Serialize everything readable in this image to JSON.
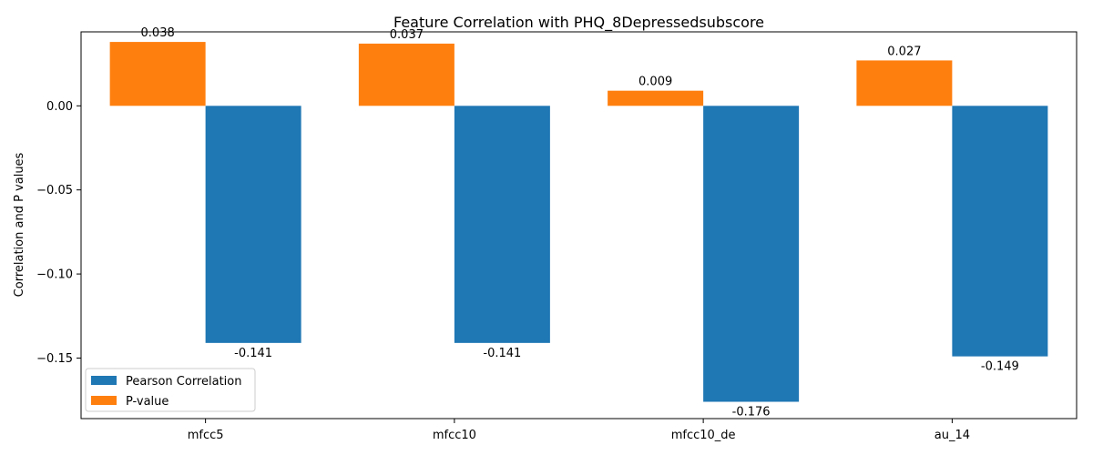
{
  "chart_data": {
    "type": "bar",
    "title": "Feature Correlation with PHQ_8Depressedsubscore",
    "xlabel": "",
    "ylabel": "Correlation and P values",
    "categories": [
      "mfcc5",
      "mfcc10",
      "mfcc10_de",
      "au_14"
    ],
    "series": [
      {
        "name": "Pearson Correlation",
        "color": "#1f77b4",
        "values": [
          -0.141,
          -0.141,
          -0.176,
          -0.149
        ],
        "labels": [
          "-0.141",
          "-0.141",
          "-0.176",
          "-0.149"
        ]
      },
      {
        "name": "P-value",
        "color": "#ff7f0e",
        "values": [
          0.038,
          0.037,
          0.009,
          0.027
        ],
        "labels": [
          "0.038",
          "0.037",
          "0.009",
          "0.027"
        ]
      }
    ],
    "ylim": [
      -0.186,
      0.044
    ],
    "yticks": [
      0.0,
      -0.05,
      -0.1,
      -0.15
    ],
    "ytick_labels": [
      "0.00",
      "−0.05",
      "−0.10",
      "−0.15"
    ],
    "grid": false,
    "legend_position": "lower-left"
  }
}
